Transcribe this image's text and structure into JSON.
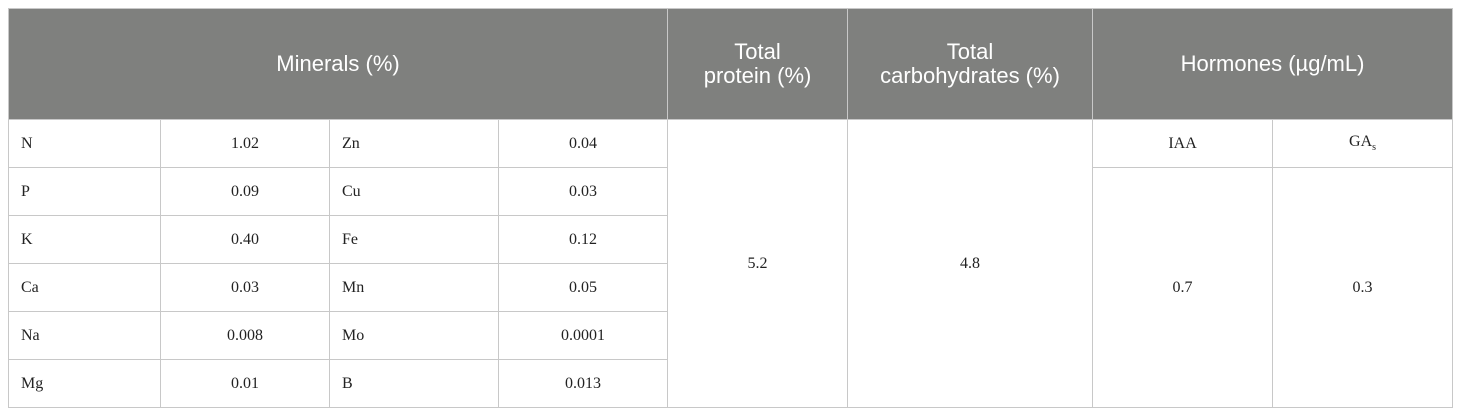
{
  "header": {
    "minerals": "Minerals (%)",
    "protein": [
      "Total",
      "protein (%)"
    ],
    "carbohydrates": [
      "Total",
      "carbohydrates (%)"
    ],
    "hormones": "Hormones (µg/mL)"
  },
  "minerals": [
    [
      "N",
      "1.02",
      "Zn",
      "0.04"
    ],
    [
      "P",
      "0.09",
      "Cu",
      "0.03"
    ],
    [
      "K",
      "0.40",
      "Fe",
      "0.12"
    ],
    [
      "Ca",
      "0.03",
      "Mn",
      "0.05"
    ],
    [
      "Na",
      "0.008",
      "Mo",
      "0.0001"
    ],
    [
      "Mg",
      "0.01",
      "B",
      "0.013"
    ]
  ],
  "protein": "5.2",
  "carbohydrates": "4.8",
  "hormones": {
    "labels": [
      {
        "main": "IAA"
      },
      {
        "main": "GA",
        "sub": "s"
      }
    ],
    "values": [
      "0.7",
      "0.3"
    ]
  }
}
